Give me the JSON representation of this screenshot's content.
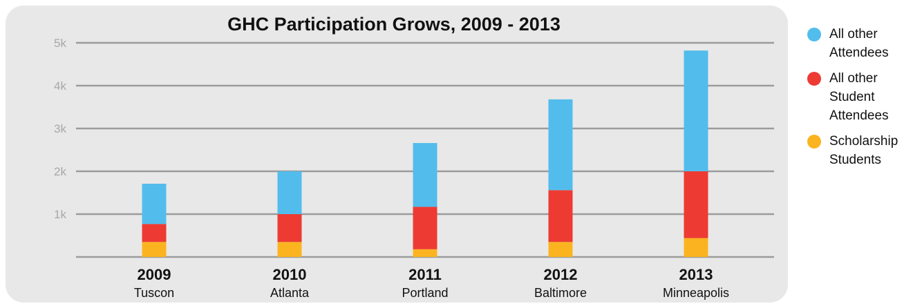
{
  "colors": {
    "panel": "#e8e8e8",
    "gridline": "#9b9b9b",
    "tick_label": "#a8a8a8"
  },
  "chart_data": {
    "type": "bar",
    "stacked": true,
    "title": "GHC Participation Grows, 2009 - 2013",
    "categories": [
      "2009",
      "2010",
      "2011",
      "2012",
      "2013"
    ],
    "category_sublabels": [
      "Tuscon",
      "Atlanta",
      "Portland",
      "Baltimore",
      "Minneapolis"
    ],
    "series": [
      {
        "name": "Scholarship Students",
        "color": "#fbb41f",
        "values": [
          350,
          350,
          180,
          350,
          440
        ]
      },
      {
        "name": "All other Student Attendees",
        "color": "#ed3b33",
        "values": [
          420,
          650,
          990,
          1210,
          1560
        ]
      },
      {
        "name": "All other Attendees",
        "color": "#52bdec",
        "values": [
          940,
          1000,
          1490,
          2120,
          2820
        ]
      }
    ],
    "ylim": [
      0,
      5000
    ],
    "yticks": [
      1000,
      2000,
      3000,
      4000,
      5000
    ],
    "ytick_labels": [
      "1k",
      "2k",
      "3k",
      "4k",
      "5k"
    ],
    "grid": true,
    "legend_position": "right"
  },
  "legend": {
    "items": [
      {
        "label": "All other\nAttendees",
        "color": "#52bdec"
      },
      {
        "label": "All other\nStudent\nAttendees",
        "color": "#ed3b33"
      },
      {
        "label": "Scholarship\nStudents",
        "color": "#fbb41f"
      }
    ]
  }
}
